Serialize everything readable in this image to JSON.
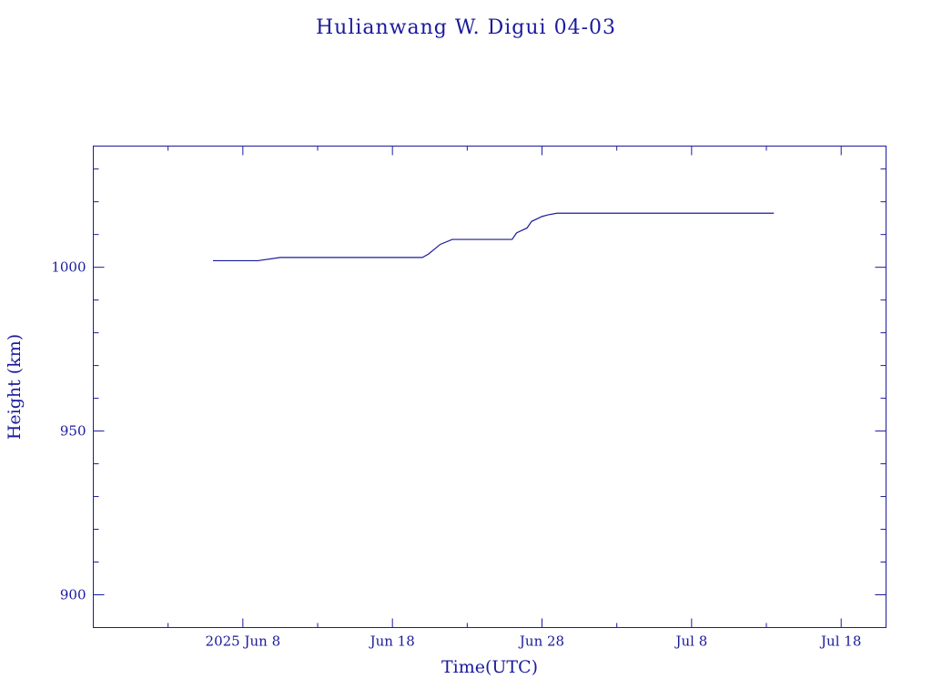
{
  "chart_data": {
    "type": "line",
    "title": "Hulianwang W. Digui 04-03",
    "xlabel": "Time(UTC)",
    "ylabel": "Height (km)",
    "xlim": [
      "2025-05-29",
      "2025-07-21"
    ],
    "ylim": [
      890,
      1037
    ],
    "x_ticks": [
      {
        "date": "2025-06-08",
        "label": "2025 Jun  8"
      },
      {
        "date": "2025-06-18",
        "label": "Jun 18"
      },
      {
        "date": "2025-06-28",
        "label": "Jun 28"
      },
      {
        "date": "2025-07-08",
        "label": "Jul  8"
      },
      {
        "date": "2025-07-18",
        "label": "Jul 18"
      }
    ],
    "y_ticks": [
      {
        "value": 900,
        "label": "900"
      },
      {
        "value": 950,
        "label": "950"
      },
      {
        "value": 1000,
        "label": "1000"
      }
    ],
    "grid": false,
    "series": [
      {
        "x": [
          "2025-06-06",
          "2025-06-09",
          "2025-06-10.5",
          "2025-06-20",
          "2025-06-20.4",
          "2025-06-21.2",
          "2025-06-22",
          "2025-06-26",
          "2025-06-26.3",
          "2025-06-27",
          "2025-06-27.3",
          "2025-06-28",
          "2025-06-28.4",
          "2025-06-29",
          "2025-07-03",
          "2025-07-13.5"
        ],
        "y": [
          1002,
          1002,
          1003,
          1003,
          1004,
          1007,
          1008.5,
          1008.5,
          1010.5,
          1012,
          1014,
          1015.5,
          1016,
          1016.5,
          1016.5,
          1016.5
        ]
      }
    ]
  }
}
